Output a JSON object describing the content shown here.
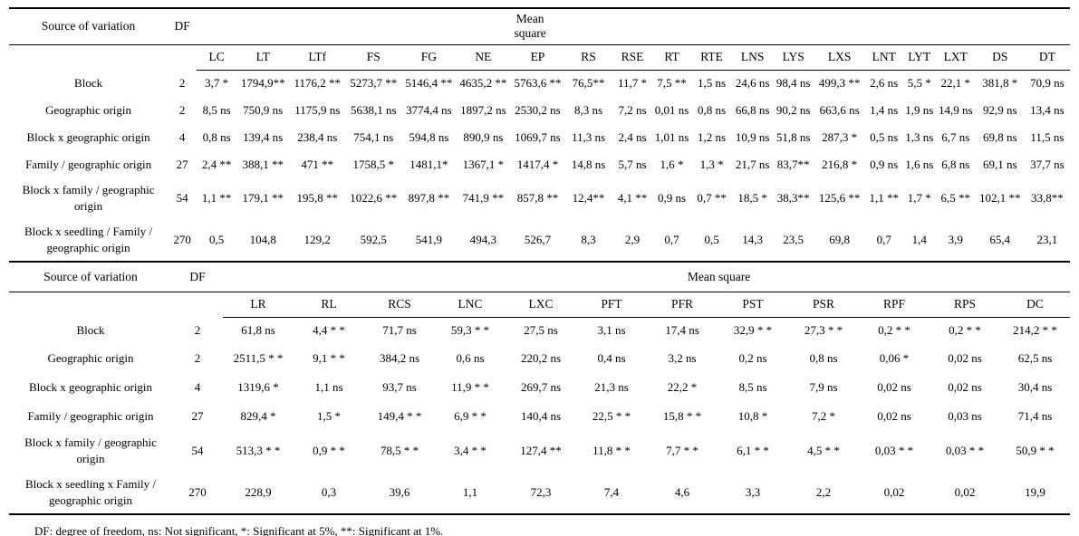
{
  "footnote": "DF: degree of freedom, ns: Not significant, *: Significant at 5%, **: Significant at 1%.",
  "tables": [
    {
      "header": {
        "source": "Source of variation",
        "df": "DF",
        "mean_square": "Mean square"
      },
      "columns": [
        "LC",
        "LT",
        "LTf",
        "FS",
        "FG",
        "NE",
        "EP",
        "RS",
        "RSE",
        "RT",
        "RTE",
        "LNS",
        "LYS",
        "LXS",
        "LNT",
        "LYT",
        "LXT",
        "DS",
        "DT"
      ],
      "rows": [
        {
          "label": "Block",
          "df": "2",
          "values": [
            "3,7 *",
            "1794,9**",
            "1176,2 **",
            "5273,7 **",
            "5146,4 **",
            "4635,2 **",
            "5763,6 **",
            "76,5**",
            "11,7 *",
            "7,5 **",
            "1,5 ns",
            "24,6 ns",
            "98,4 ns",
            "499,3 **",
            "2,6 ns",
            "5,5 *",
            "22,1 *",
            "381,8 *",
            "70,9 ns"
          ]
        },
        {
          "label": "Geographic origin",
          "df": "2",
          "values": [
            "8,5 ns",
            "750,9 ns",
            "1175,9 ns",
            "5638,1 ns",
            "3774,4 ns",
            "1897,2 ns",
            "2530,2 ns",
            "8,3 ns",
            "7,2 ns",
            "0,01 ns",
            "0,8 ns",
            "66,8 ns",
            "90,2 ns",
            "663,6 ns",
            "1,4 ns",
            "1,9 ns",
            "14,9 ns",
            "92,9 ns",
            "13,4 ns"
          ]
        },
        {
          "label": "Block x geographic origin",
          "df": "4",
          "values": [
            "0,8 ns",
            "139,4 ns",
            "238,4 ns",
            "754,1 ns",
            "594,8 ns",
            "890,9 ns",
            "1069,7 ns",
            "11,3 ns",
            "2,4 ns",
            "1,01 ns",
            "1,2 ns",
            "10,9 ns",
            "51,8 ns",
            "287,3 *",
            "0,5 ns",
            "1,3 ns",
            "6,7 ns",
            "69,8 ns",
            "11,5 ns"
          ]
        },
        {
          "label": "Family / geographic origin",
          "df": "27",
          "values": [
            "2,4 **",
            "388,1 **",
            "471 **",
            "1758,5 *",
            "1481,1*",
            "1367,1 *",
            "1417,4 *",
            "14,8 ns",
            "5,7 ns",
            "1,6 *",
            "1,3 *",
            "21,7 ns",
            "83,7**",
            "216,8 *",
            "0,9 ns",
            "1,6 ns",
            "6,8 ns",
            "69,1 ns",
            "37,7 ns"
          ]
        },
        {
          "label": "Block x family / geographic origin",
          "df": "54",
          "values": [
            "1,1 **",
            "179,1 **",
            "195,8 **",
            "1022,6 **",
            "897,8 **",
            "741,9 **",
            "857,8 **",
            "12,4**",
            "4,1 **",
            "0,9 ns",
            "0,7 **",
            "18,5 *",
            "38,3**",
            "125,6 **",
            "1,1 **",
            "1,7 *",
            "6,5 **",
            "102,1 **",
            "33,8**"
          ]
        },
        {
          "label": "Block x seedling / Family / geographic origin",
          "df": "270",
          "values": [
            "0,5",
            "104,8",
            "129,2",
            "592,5",
            "541,9",
            "494,3",
            "526,7",
            "8,3",
            "2,9",
            "0,7",
            "0,5",
            "14,3",
            "23,5",
            "69,8",
            "0,7",
            "1,4",
            "3,9",
            "65,4",
            "23,1"
          ]
        }
      ]
    },
    {
      "header": {
        "source": "Source of variation",
        "df": "DF",
        "mean_square": "Mean square"
      },
      "columns": [
        "LR",
        "RL",
        "RCS",
        "LNC",
        "LXC",
        "PFT",
        "PFR",
        "PST",
        "PSR",
        "RPF",
        "RPS",
        "DC"
      ],
      "rows": [
        {
          "label": "Block",
          "df": "2",
          "values": [
            "61,8 ns",
            "4,4 * *",
            "71,7 ns",
            "59,3 * *",
            "27,5 ns",
            "3,1 ns",
            "17,4 ns",
            "32,9 * *",
            "27,3 * *",
            "0,2 * *",
            "0,2 * *",
            "214,2 * *"
          ]
        },
        {
          "label": "Geographic origin",
          "df": "2",
          "values": [
            "2511,5 * *",
            "9,1 * *",
            "384,2 ns",
            "0,6 ns",
            "220,2 ns",
            "0,4 ns",
            "3,2 ns",
            "0,2 ns",
            "0,8 ns",
            "0,06 *",
            "0,02 ns",
            "62,5 ns"
          ]
        },
        {
          "label": "Block x geographic origin",
          "df": "4",
          "values": [
            "1319,6 *",
            "1,1 ns",
            "93,7 ns",
            "11,9 * *",
            "269,7 ns",
            "21,3 ns",
            "22,2 *",
            "8,5 ns",
            "7,9 ns",
            "0,02 ns",
            "0,02 ns",
            "30,4 ns"
          ]
        },
        {
          "label": "Family / geographic origin",
          "df": "27",
          "values": [
            "829,4 *",
            "1,5 *",
            "149,4 * *",
            "6,9 * *",
            "140,4 ns",
            "22,5 * *",
            "15,8 * *",
            "10,8 *",
            "7,2 *",
            "0,02 ns",
            "0,03 ns",
            "71,4 ns"
          ]
        },
        {
          "label": "Block x family / geographic origin",
          "df": "54",
          "values": [
            "513,3 * *",
            "0,9 * *",
            "78,5 * *",
            "3,4 * *",
            "127,4 **",
            "11,8 * *",
            "7,7 * *",
            "6,1 * *",
            "4,5 * *",
            "0,03 * *",
            "0,03 * *",
            "50,9 * *"
          ]
        },
        {
          "label": "Block x seedling x Family / geographic origin",
          "df": "270",
          "values": [
            "228,9",
            "0,3",
            "39,6",
            "1,1",
            "72,3",
            "7,4",
            "4,6",
            "3,3",
            "2,2",
            "0,02",
            "0,02",
            "19,9"
          ]
        }
      ]
    }
  ]
}
